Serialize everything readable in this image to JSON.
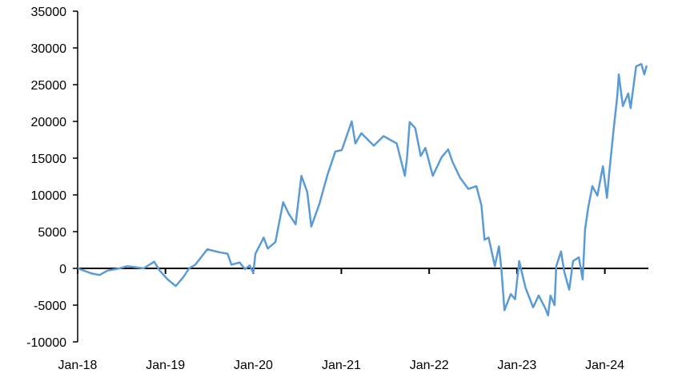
{
  "chart_data": {
    "type": "line",
    "title": "",
    "xlabel": "",
    "ylabel": "",
    "ylim": [
      -10000,
      35000
    ],
    "yticks": [
      "35000",
      "30000",
      "25000",
      "20000",
      "15000",
      "10000",
      "5000",
      "0",
      "-5000",
      "-10000"
    ],
    "xlim": [
      "2018-01-01",
      "2024-06-30"
    ],
    "xticks": [
      {
        "date": "2018-01-01",
        "label": "Jan-18"
      },
      {
        "date": "2019-01-01",
        "label": "Jan-19"
      },
      {
        "date": "2020-01-01",
        "label": "Jan-20"
      },
      {
        "date": "2021-01-01",
        "label": "Jan-21"
      },
      {
        "date": "2022-01-01",
        "label": "Jan-22"
      },
      {
        "date": "2023-01-01",
        "label": "Jan-23"
      },
      {
        "date": "2024-01-01",
        "label": "Jan-24"
      }
    ],
    "grid": false,
    "line_color": "#5B9BD5",
    "series": [
      {
        "x": [
          "2018-01-01",
          "2018-01-27",
          "2018-03-01",
          "2018-04-02",
          "2018-05-05",
          "2018-06-24",
          "2018-07-27",
          "2018-10-02",
          "2018-11-15",
          "2018-12-08",
          "2019-01-10",
          "2019-02-13",
          "2019-03-16",
          "2019-04-09",
          "2019-05-05",
          "2019-06-24",
          "2019-08-13",
          "2019-09-16",
          "2019-10-02",
          "2019-11-05",
          "2019-11-28",
          "2019-12-17",
          "2020-01-01",
          "2020-01-10",
          "2020-02-13",
          "2020-03-01",
          "2020-04-02",
          "2020-05-04",
          "2020-05-28",
          "2020-06-25",
          "2020-07-19",
          "2020-08-12",
          "2020-08-29",
          "2020-10-02",
          "2020-11-04",
          "2020-12-07",
          "2021-01-03",
          "2021-02-13",
          "2021-02-28",
          "2021-03-25",
          "2021-05-16",
          "2021-06-25",
          "2021-08-19",
          "2021-09-22",
          "2021-10-01",
          "2021-10-12",
          "2021-11-04",
          "2021-11-27",
          "2021-12-16",
          "2022-01-16",
          "2022-02-21",
          "2022-03-21",
          "2022-04-08",
          "2022-05-10",
          "2022-06-13",
          "2022-07-16",
          "2022-08-06",
          "2022-08-19",
          "2022-09-05",
          "2022-10-01",
          "2022-10-18",
          "2022-10-28",
          "2022-11-10",
          "2022-12-06",
          "2022-12-24",
          "2023-01-10",
          "2023-02-05",
          "2023-03-09",
          "2023-04-01",
          "2023-04-27",
          "2023-05-10",
          "2023-05-20",
          "2023-06-06",
          "2023-06-13",
          "2023-07-03",
          "2023-07-16",
          "2023-08-06",
          "2023-08-22",
          "2023-09-15",
          "2023-10-01",
          "2023-10-11",
          "2023-10-24",
          "2023-11-10",
          "2023-12-01",
          "2023-12-24",
          "2024-01-10",
          "2024-01-19",
          "2024-02-05",
          "2024-02-22",
          "2024-02-28",
          "2024-03-16",
          "2024-04-07",
          "2024-04-17",
          "2024-05-10",
          "2024-06-01",
          "2024-06-13",
          "2024-06-23"
        ],
        "values": [
          0,
          -300,
          -700,
          -900,
          -300,
          0,
          300,
          0,
          900,
          -300,
          -1500,
          -2400,
          -1200,
          0,
          500,
          2600,
          2200,
          2000,
          500,
          800,
          -100,
          400,
          -600,
          2000,
          4200,
          2700,
          3600,
          9000,
          7400,
          6000,
          12600,
          10400,
          5700,
          8800,
          12700,
          15900,
          16100,
          20000,
          17000,
          18400,
          16700,
          18000,
          17000,
          12600,
          15100,
          19900,
          19100,
          15300,
          16400,
          12600,
          15100,
          16200,
          14500,
          12300,
          10800,
          11200,
          8600,
          3900,
          4200,
          300,
          3000,
          0,
          -5700,
          -3500,
          -4200,
          1000,
          -2600,
          -5300,
          -3700,
          -5300,
          -6400,
          -3700,
          -5000,
          300,
          2300,
          -400,
          -2900,
          1000,
          1500,
          -1500,
          5300,
          8300,
          11200,
          9900,
          13900,
          9600,
          12900,
          18400,
          23500,
          26400,
          22100,
          23800,
          21800,
          27500,
          27800,
          26400,
          27600
        ]
      }
    ]
  }
}
